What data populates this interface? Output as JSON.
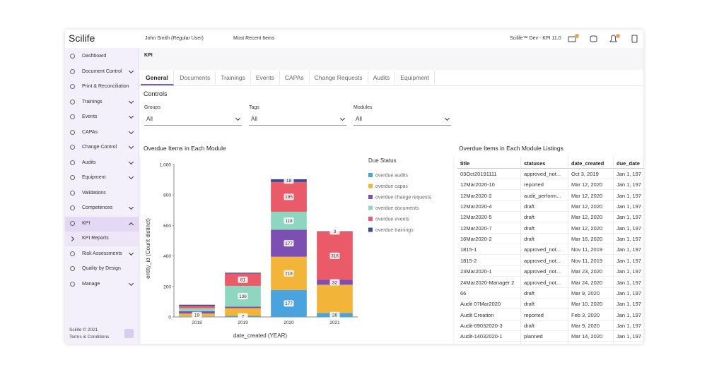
{
  "header": {
    "brand": "Scilife",
    "user": "John Smith (Regular User)",
    "recent": "Most Recent Items",
    "env": "Scilife™ Dev - KPI 11.0"
  },
  "sidebar": {
    "items": [
      {
        "label": "Dashboard",
        "chevron": false
      },
      {
        "label": "Document Control",
        "chevron": true
      },
      {
        "label": "Print & Reconciliation",
        "chevron": false
      },
      {
        "label": "Trainings",
        "chevron": true
      },
      {
        "label": "Events",
        "chevron": true
      },
      {
        "label": "CAPAs",
        "chevron": true
      },
      {
        "label": "Change Control",
        "chevron": true
      },
      {
        "label": "Audits",
        "chevron": true
      },
      {
        "label": "Equipment",
        "chevron": true
      },
      {
        "label": "Validations",
        "chevron": false
      },
      {
        "label": "Competences",
        "chevron": true
      },
      {
        "label": "KPI",
        "chevron": true,
        "open": true
      },
      {
        "label": "KPI Reports",
        "chevron": false,
        "sub": true
      },
      {
        "label": "Risk Assessments",
        "chevron": true
      },
      {
        "label": "Quality by Design",
        "chevron": false
      },
      {
        "label": "Manage",
        "chevron": true
      }
    ],
    "active": 11,
    "footer": [
      "Scilife © 2021",
      "Terms & Conditions"
    ]
  },
  "breadcrumb": "KPI",
  "tabs": {
    "items": [
      "General",
      "Documents",
      "Trainings",
      "Events",
      "CAPAs",
      "Change Requests",
      "Audits",
      "Equipment"
    ],
    "active": 0
  },
  "controls": {
    "title": "Controls",
    "filters": [
      {
        "label": "Groups",
        "value": "All"
      },
      {
        "label": "Tags",
        "value": "All"
      },
      {
        "label": "Modules",
        "value": "All"
      }
    ]
  },
  "chart_data": {
    "type": "stacked_bar",
    "title": "Overdue Items in Each Module",
    "x_label": "date_created (YEAR)",
    "y_label": "entity_id (Count distinct)",
    "legend_title": "Due Status",
    "categories": [
      "2018",
      "2019",
      "2020",
      "2021"
    ],
    "series": [
      {
        "name": "overdue audits",
        "color": "#4aa3df",
        "values": [
          3,
          7,
          177,
          26
        ],
        "value_labels": [
          null,
          "7",
          "177",
          "26"
        ]
      },
      {
        "name": "overdue capas",
        "color": "#f2b53a",
        "values": [
          19,
          51,
          218,
          185
        ],
        "value_labels": [
          "19",
          null,
          "218",
          null
        ]
      },
      {
        "name": "overdue change requests",
        "color": "#7e4fb3",
        "values": [
          15,
          10,
          177,
          32
        ],
        "value_labels": [
          null,
          null,
          "177",
          "32"
        ]
      },
      {
        "name": "overdue documents",
        "color": "#8fd6c0",
        "values": [
          20,
          136,
          118,
          0
        ],
        "value_labels": [
          null,
          "136",
          "118",
          null
        ]
      },
      {
        "name": "overdue events",
        "color": "#ea5b6a",
        "values": [
          15,
          81,
          195,
          316
        ],
        "value_labels": [
          null,
          "81",
          "195",
          "316"
        ]
      },
      {
        "name": "overdue trainings",
        "color": "#3b4a8f",
        "values": [
          8,
          5,
          18,
          3
        ],
        "value_labels": [
          null,
          null,
          "18",
          "3"
        ]
      }
    ],
    "ylim": [
      0,
      1000
    ],
    "yticks": [
      0,
      200,
      400,
      600,
      800,
      {
        "value": 1000,
        "label": "1,000"
      }
    ]
  },
  "table": {
    "title": "Overdue Items in Each Module Listings",
    "columns": [
      "title",
      "statuses",
      "date_created",
      "due_date"
    ],
    "rows": [
      [
        "03Oct20191111",
        "approved_not...",
        "Oct 3, 2019",
        "Jan 1, 197"
      ],
      [
        "12Mar2020-10",
        "reported",
        "Mar 12, 2020",
        "Jan 1, 197"
      ],
      [
        "12Mar2020-2",
        "audit_perform...",
        "Mar 12, 2020",
        "Jan 1, 197"
      ],
      [
        "12Mar2020-4",
        "draft",
        "Mar 12, 2020",
        "Jan 1, 197"
      ],
      [
        "12Mar2020-5",
        "draft",
        "Mar 12, 2020",
        "Jan 1, 197"
      ],
      [
        "12Mar2020-7",
        "draft",
        "Mar 12, 2020",
        "Jan 1, 197"
      ],
      [
        "16Mar2020-2",
        "draft",
        "Mar 16, 2020",
        "Jan 1, 197"
      ],
      [
        "1815-1",
        "approved_not...",
        "Nov 11, 2019",
        "Jan 1, 197"
      ],
      [
        "1815-2",
        "approved_not...",
        "Nov 11, 2019",
        "Jan 1, 197"
      ],
      [
        "23Mar2020-1",
        "approved_not...",
        "Mar 23, 2020",
        "Jan 1, 197"
      ],
      [
        "24Mar2020-Manager 2",
        "approved_not...",
        "Mar 24, 2020",
        "Jan 1, 197"
      ],
      [
        "66",
        "draft",
        "Mar 9, 2020",
        "Jan 1, 197"
      ],
      [
        "Audit 07Mar2020",
        "draft",
        "Mar 10, 2020",
        "Jan 1, 197"
      ],
      [
        "Audit Creation",
        "reported",
        "Feb 3, 2020",
        "Jan 1, 197"
      ],
      [
        "Audit-09032020-3",
        "draft",
        "Mar 9, 2020",
        "Jan 1, 197"
      ],
      [
        "Audit-14032020-1",
        "planned",
        "Mar 14, 2020",
        "Jan 1, 197"
      ]
    ]
  }
}
